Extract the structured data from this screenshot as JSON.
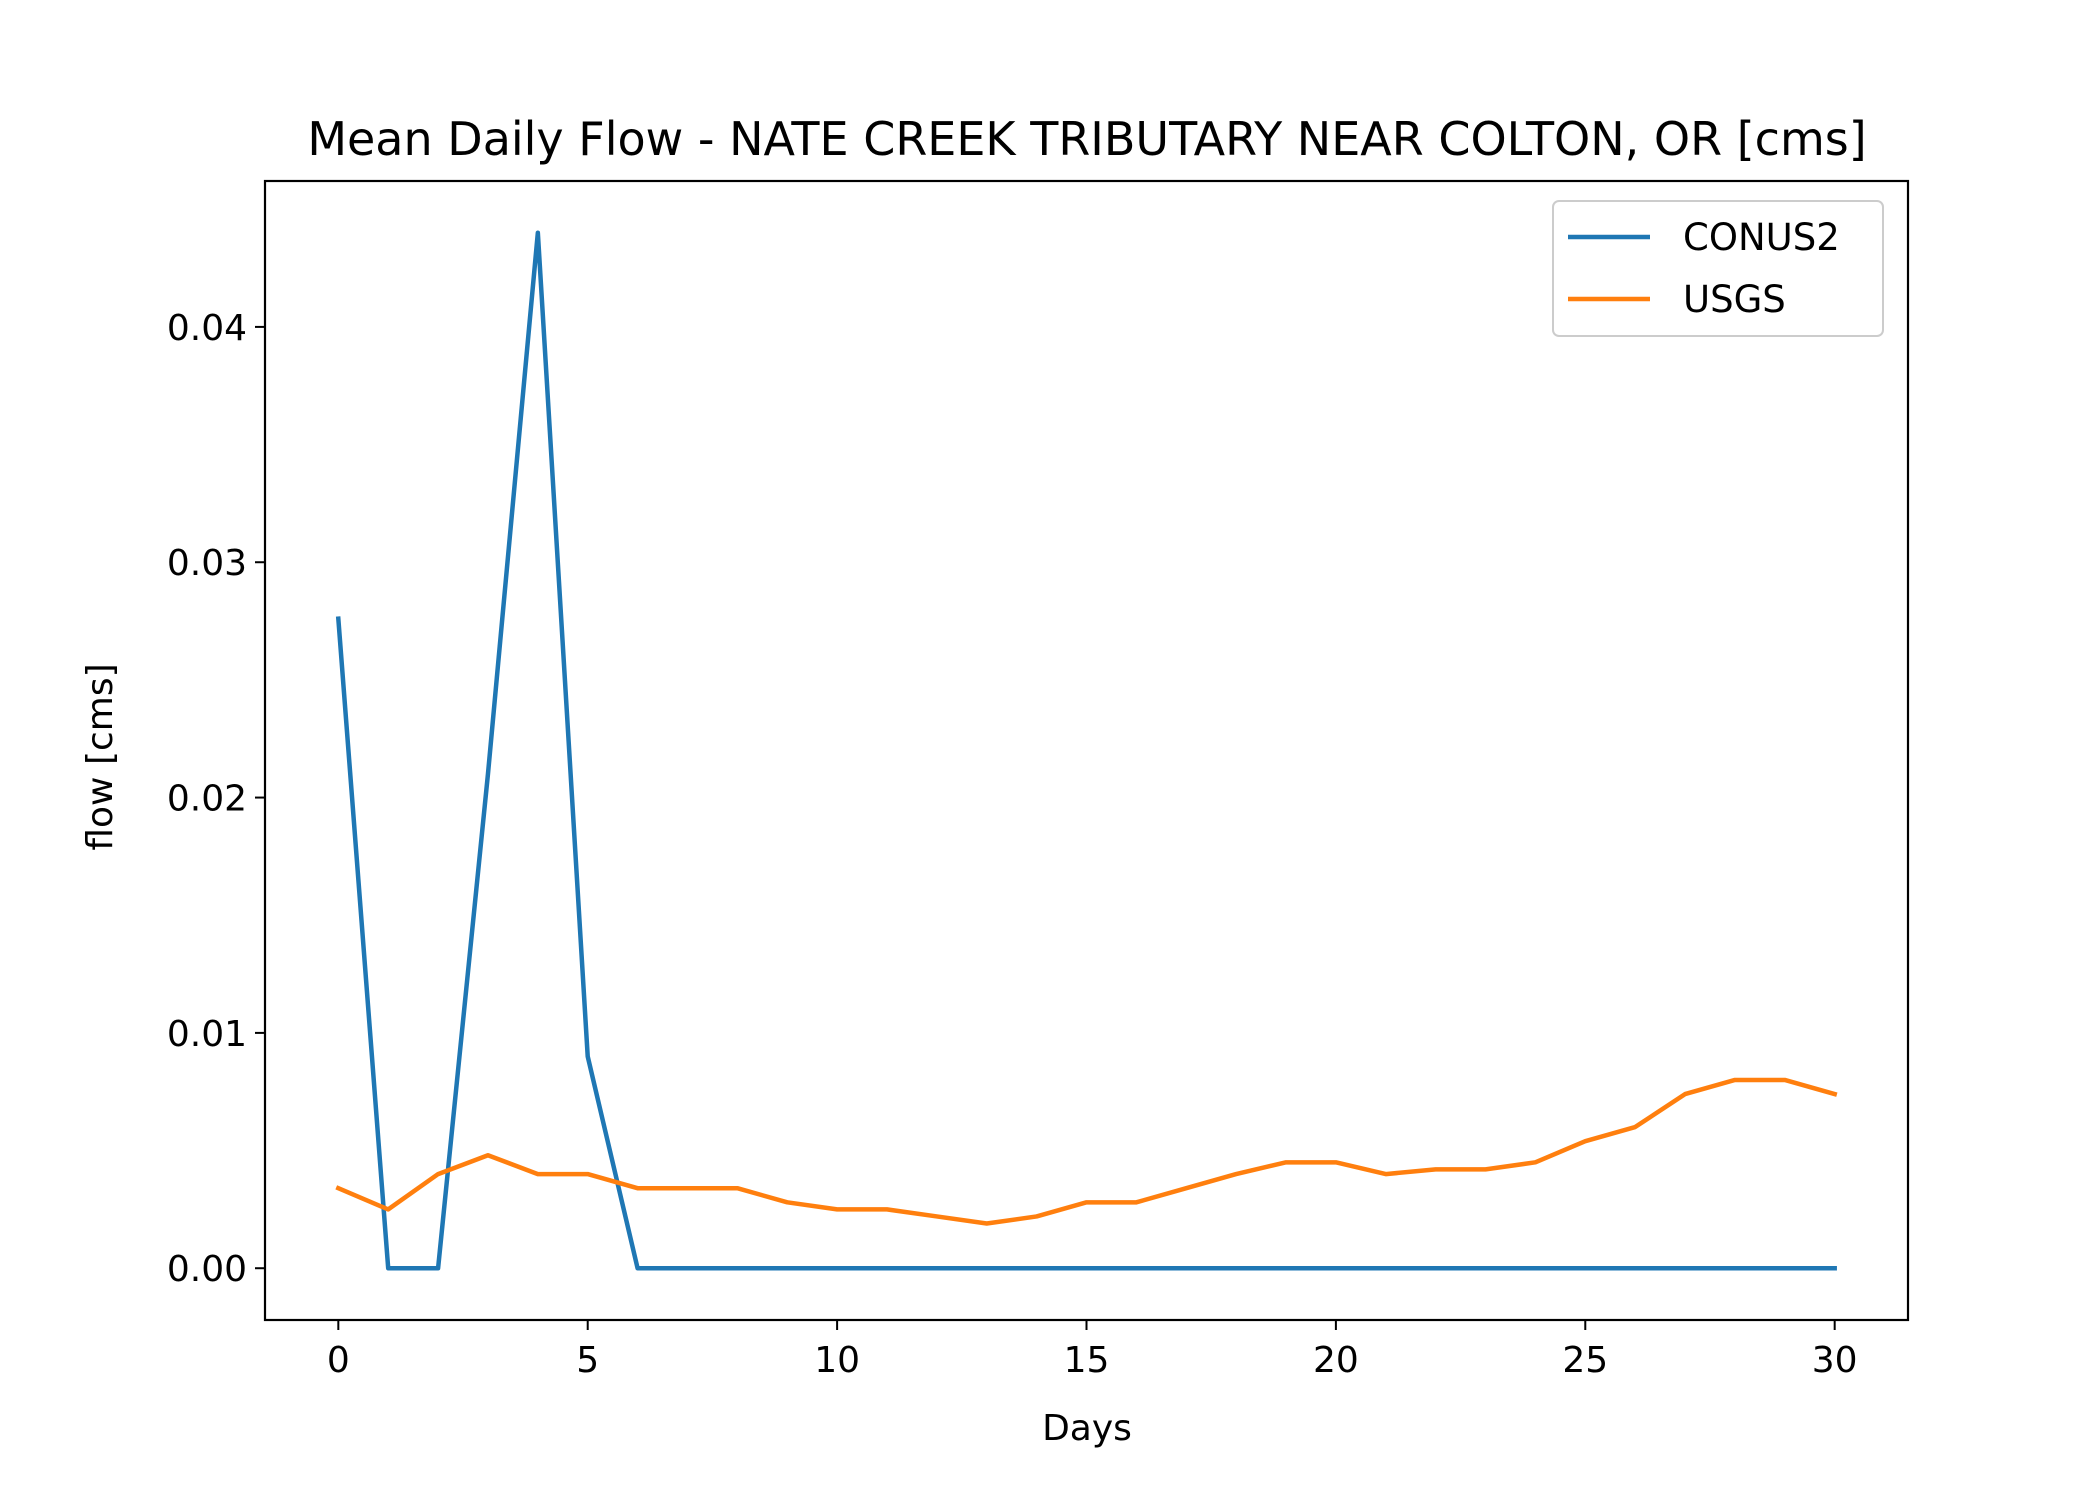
{
  "chart_data": {
    "type": "line",
    "title": "Mean Daily Flow - NATE CREEK TRIBUTARY NEAR COLTON, OR [cms]",
    "xlabel": "Days",
    "ylabel": "flow [cms]",
    "xlim": [
      -1.47,
      31.47
    ],
    "ylim": [
      -0.0022,
      0.0462
    ],
    "xticks": [
      0,
      5,
      10,
      15,
      20,
      25,
      30
    ],
    "xtick_labels": [
      "0",
      "5",
      "10",
      "15",
      "20",
      "25",
      "30"
    ],
    "yticks": [
      0.0,
      0.01,
      0.02,
      0.03,
      0.04
    ],
    "ytick_labels": [
      "0.00",
      "0.01",
      "0.02",
      "0.03",
      "0.04"
    ],
    "grid": false,
    "legend_position": "top-right",
    "x": [
      0,
      1,
      2,
      3,
      4,
      5,
      6,
      7,
      8,
      9,
      10,
      11,
      12,
      13,
      14,
      15,
      16,
      17,
      18,
      19,
      20,
      21,
      22,
      23,
      24,
      25,
      26,
      27,
      28,
      29,
      30
    ],
    "series": [
      {
        "name": "CONUS2",
        "color": "#1f77b4",
        "values": [
          0.0276,
          0.0,
          0.0,
          0.021,
          0.044,
          0.009,
          0.0,
          0.0,
          0.0,
          0.0,
          0.0,
          0.0,
          0.0,
          0.0,
          0.0,
          0.0,
          0.0,
          0.0,
          0.0,
          0.0,
          0.0,
          0.0,
          0.0,
          0.0,
          0.0,
          0.0,
          0.0,
          0.0,
          0.0,
          0.0,
          0.0
        ]
      },
      {
        "name": "USGS",
        "color": "#ff7f0e",
        "values": [
          0.0034,
          0.0025,
          0.004,
          0.0048,
          0.004,
          0.004,
          0.0034,
          0.0034,
          0.0034,
          0.0028,
          0.0025,
          0.0025,
          0.0022,
          0.0019,
          0.0022,
          0.0028,
          0.0028,
          0.0034,
          0.004,
          0.0045,
          0.0045,
          0.004,
          0.0042,
          0.0042,
          0.0045,
          0.0054,
          0.006,
          0.0074,
          0.008,
          0.008,
          0.0074
        ]
      }
    ]
  }
}
